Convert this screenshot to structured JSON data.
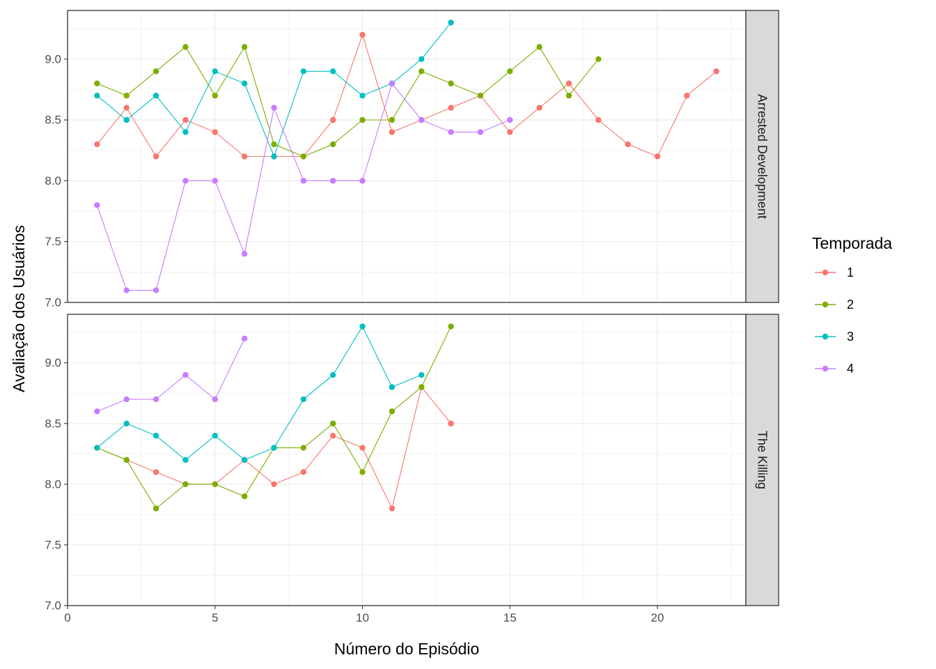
{
  "chart_data": {
    "type": "line",
    "xlabel": "Número do Episódio",
    "ylabel": "Avaliação dos Usuários",
    "xlim": [
      0,
      23
    ],
    "ylim": [
      7.0,
      9.4
    ],
    "x_ticks": [
      "0",
      "5",
      "10",
      "15",
      "20"
    ],
    "y_ticks": [
      "7.0",
      "7.5",
      "8.0",
      "8.5",
      "9.0"
    ],
    "grid": true,
    "legend": {
      "title": "Temporada",
      "position": "right",
      "entries": [
        "1",
        "2",
        "3",
        "4"
      ]
    },
    "colors": {
      "1": "#F8766D",
      "2": "#7CAE00",
      "3": "#00BFC4",
      "4": "#C77CFF"
    },
    "facets": [
      {
        "label": "Arrested Development",
        "series": [
          {
            "name": "1",
            "x": [
              1,
              2,
              3,
              4,
              5,
              6,
              7,
              8,
              9,
              10,
              11,
              12,
              13,
              14,
              15,
              16,
              17,
              18,
              19,
              20,
              21,
              22
            ],
            "y": [
              8.3,
              8.6,
              8.2,
              8.5,
              8.4,
              8.2,
              8.2,
              8.2,
              8.5,
              9.2,
              8.4,
              8.5,
              8.6,
              8.7,
              8.4,
              8.6,
              8.8,
              8.5,
              8.3,
              8.2,
              8.7,
              8.9
            ]
          },
          {
            "name": "2",
            "x": [
              1,
              2,
              3,
              4,
              5,
              6,
              7,
              8,
              9,
              10,
              11,
              12,
              13,
              14,
              15,
              16,
              17,
              18
            ],
            "y": [
              8.8,
              8.7,
              8.9,
              9.1,
              8.7,
              9.1,
              8.3,
              8.2,
              8.3,
              8.5,
              8.5,
              8.9,
              8.8,
              8.7,
              8.9,
              9.1,
              8.7,
              9.0
            ]
          },
          {
            "name": "3",
            "x": [
              1,
              2,
              3,
              4,
              5,
              6,
              7,
              8,
              9,
              10,
              11,
              12,
              13
            ],
            "y": [
              8.7,
              8.5,
              8.7,
              8.4,
              8.9,
              8.8,
              8.2,
              8.9,
              8.9,
              8.7,
              8.8,
              9.0,
              9.3
            ]
          },
          {
            "name": "4",
            "x": [
              1,
              2,
              3,
              4,
              5,
              6,
              7,
              8,
              9,
              10,
              11,
              12,
              13,
              14,
              15
            ],
            "y": [
              7.8,
              7.1,
              7.1,
              8.0,
              8.0,
              7.4,
              8.6,
              8.0,
              8.0,
              8.0,
              8.8,
              8.5,
              8.4,
              8.4,
              8.5
            ]
          }
        ]
      },
      {
        "label": "The Killing",
        "series": [
          {
            "name": "1",
            "x": [
              1,
              2,
              3,
              4,
              5,
              6,
              7,
              8,
              9,
              10,
              11,
              12,
              13
            ],
            "y": [
              8.3,
              8.2,
              8.1,
              8.0,
              8.0,
              8.2,
              8.0,
              8.1,
              8.4,
              8.3,
              7.8,
              8.8,
              8.5
            ]
          },
          {
            "name": "2",
            "x": [
              1,
              2,
              3,
              4,
              5,
              6,
              7,
              8,
              9,
              10,
              11,
              12,
              13
            ],
            "y": [
              8.3,
              8.2,
              7.8,
              8.0,
              8.0,
              7.9,
              8.3,
              8.3,
              8.5,
              8.1,
              8.6,
              8.8,
              9.3
            ]
          },
          {
            "name": "3",
            "x": [
              1,
              2,
              3,
              4,
              5,
              6,
              7,
              8,
              9,
              10,
              11,
              12
            ],
            "y": [
              8.3,
              8.5,
              8.4,
              8.2,
              8.4,
              8.2,
              8.3,
              8.7,
              8.9,
              9.3,
              8.8,
              8.9
            ]
          },
          {
            "name": "4",
            "x": [
              1,
              2,
              3,
              4,
              5,
              6
            ],
            "y": [
              8.6,
              8.7,
              8.7,
              8.9,
              8.7,
              9.2
            ]
          }
        ]
      }
    ]
  }
}
